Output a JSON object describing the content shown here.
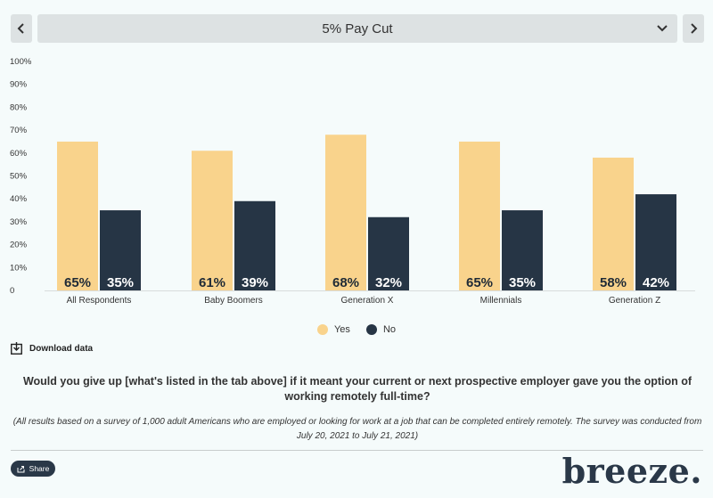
{
  "nav": {
    "selected_tab": "5% Pay Cut"
  },
  "chart_data": {
    "type": "bar",
    "title": "5% Pay Cut",
    "categories": [
      "All Respondents",
      "Baby Boomers",
      "Generation X",
      "Millennials",
      "Generation Z"
    ],
    "series": [
      {
        "name": "Yes",
        "values": [
          65,
          61,
          68,
          65,
          58
        ],
        "color": "#f9d38c"
      },
      {
        "name": "No",
        "values": [
          35,
          39,
          32,
          35,
          42
        ],
        "color": "#263545"
      }
    ],
    "data_labels": [
      [
        "65%",
        "61%",
        "68%",
        "65%",
        "58%"
      ],
      [
        "35%",
        "39%",
        "32%",
        "35%",
        "42%"
      ]
    ],
    "ylim": [
      0,
      100
    ],
    "yticks": [
      "0",
      "10%",
      "20%",
      "30%",
      "40%",
      "50%",
      "60%",
      "70%",
      "80%",
      "90%",
      "100%"
    ],
    "xlabel": "",
    "ylabel": "",
    "grid": false,
    "legend_position": "bottom"
  },
  "download_label": "Download data",
  "question": "Would you give up [what's listed in the tab above] if it meant your current or next prospective employer gave you the option of working remotely full-time?",
  "note": "(All results based on a survey of 1,000 adult Americans who are employed or looking for work at a job that can be completed entirely remotely. The survey was conducted from July 20, 2021 to July 21, 2021)",
  "share_label": "Share",
  "logo_text": "breeze."
}
